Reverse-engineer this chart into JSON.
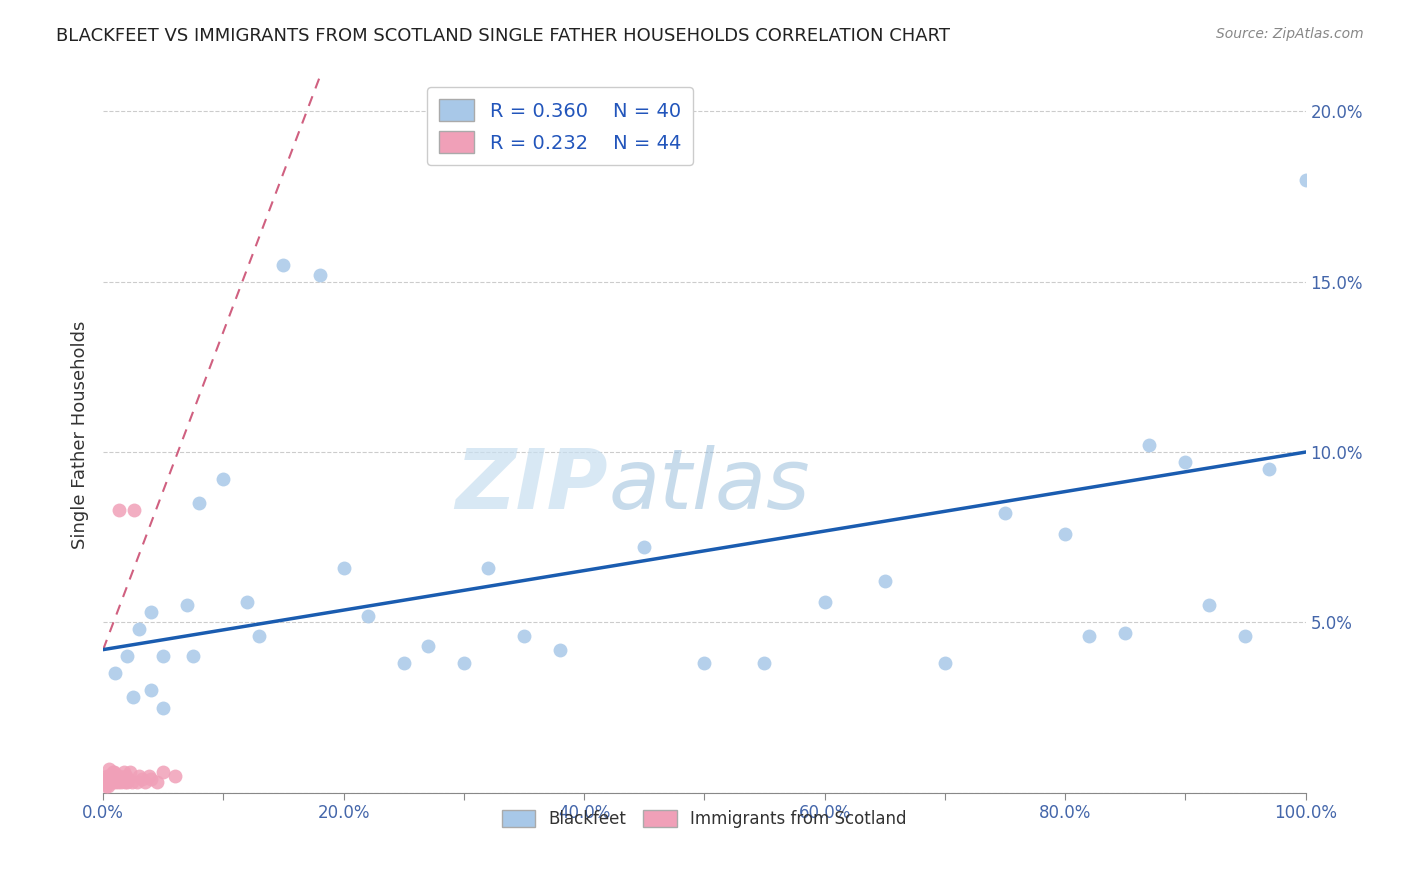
{
  "title": "BLACKFEET VS IMMIGRANTS FROM SCOTLAND SINGLE FATHER HOUSEHOLDS CORRELATION CHART",
  "source": "Source: ZipAtlas.com",
  "ylabel": "Single Father Households",
  "watermark_zip": "ZIP",
  "watermark_atlas": "atlas",
  "legend_blue_r": "R = 0.360",
  "legend_blue_n": "N = 40",
  "legend_pink_r": "R = 0.232",
  "legend_pink_n": "N = 44",
  "blue_color": "#a8c8e8",
  "pink_color": "#f0a0b8",
  "blue_line_color": "#1a5cb0",
  "pink_line_color": "#d06080",
  "xlim": [
    0,
    1.0
  ],
  "ylim": [
    0,
    0.21
  ],
  "xticks": [
    0.0,
    0.1,
    0.2,
    0.3,
    0.4,
    0.5,
    0.6,
    0.7,
    0.8,
    0.9,
    1.0
  ],
  "yticks": [
    0.0,
    0.05,
    0.1,
    0.15,
    0.2
  ],
  "blue_x": [
    0.01,
    0.02,
    0.025,
    0.03,
    0.04,
    0.04,
    0.05,
    0.05,
    0.07,
    0.075,
    0.08,
    0.1,
    0.12,
    0.13,
    0.15,
    0.18,
    0.2,
    0.22,
    0.25,
    0.27,
    0.3,
    0.32,
    0.35,
    0.38,
    0.45,
    0.5,
    0.55,
    0.6,
    0.65,
    0.7,
    0.75,
    0.8,
    0.82,
    0.85,
    0.87,
    0.9,
    0.92,
    0.95,
    0.97,
    1.0
  ],
  "blue_y": [
    0.035,
    0.04,
    0.028,
    0.048,
    0.03,
    0.053,
    0.025,
    0.04,
    0.055,
    0.04,
    0.085,
    0.092,
    0.056,
    0.046,
    0.155,
    0.152,
    0.066,
    0.052,
    0.038,
    0.043,
    0.038,
    0.066,
    0.046,
    0.042,
    0.072,
    0.038,
    0.038,
    0.056,
    0.062,
    0.038,
    0.082,
    0.076,
    0.046,
    0.047,
    0.102,
    0.097,
    0.055,
    0.046,
    0.095,
    0.18
  ],
  "pink_x": [
    0.001,
    0.002,
    0.002,
    0.003,
    0.003,
    0.004,
    0.004,
    0.005,
    0.005,
    0.005,
    0.006,
    0.006,
    0.007,
    0.007,
    0.008,
    0.008,
    0.009,
    0.009,
    0.01,
    0.01,
    0.011,
    0.012,
    0.013,
    0.013,
    0.014,
    0.015,
    0.016,
    0.017,
    0.018,
    0.019,
    0.02,
    0.021,
    0.022,
    0.024,
    0.026,
    0.028,
    0.03,
    0.032,
    0.035,
    0.038,
    0.04,
    0.045,
    0.05,
    0.06
  ],
  "pink_y": [
    0.003,
    0.002,
    0.004,
    0.003,
    0.005,
    0.002,
    0.004,
    0.003,
    0.005,
    0.007,
    0.003,
    0.004,
    0.003,
    0.005,
    0.003,
    0.006,
    0.004,
    0.006,
    0.003,
    0.005,
    0.004,
    0.003,
    0.005,
    0.083,
    0.004,
    0.003,
    0.004,
    0.006,
    0.003,
    0.005,
    0.003,
    0.004,
    0.006,
    0.003,
    0.083,
    0.003,
    0.005,
    0.004,
    0.003,
    0.005,
    0.004,
    0.003,
    0.006,
    0.005
  ],
  "blue_regression_x0": 0.0,
  "blue_regression_y0": 0.042,
  "blue_regression_x1": 1.0,
  "blue_regression_y1": 0.1,
  "pink_regression_x0": 0.0,
  "pink_regression_y0": 0.042,
  "pink_regression_x1": 0.18,
  "pink_regression_y1": 0.21
}
